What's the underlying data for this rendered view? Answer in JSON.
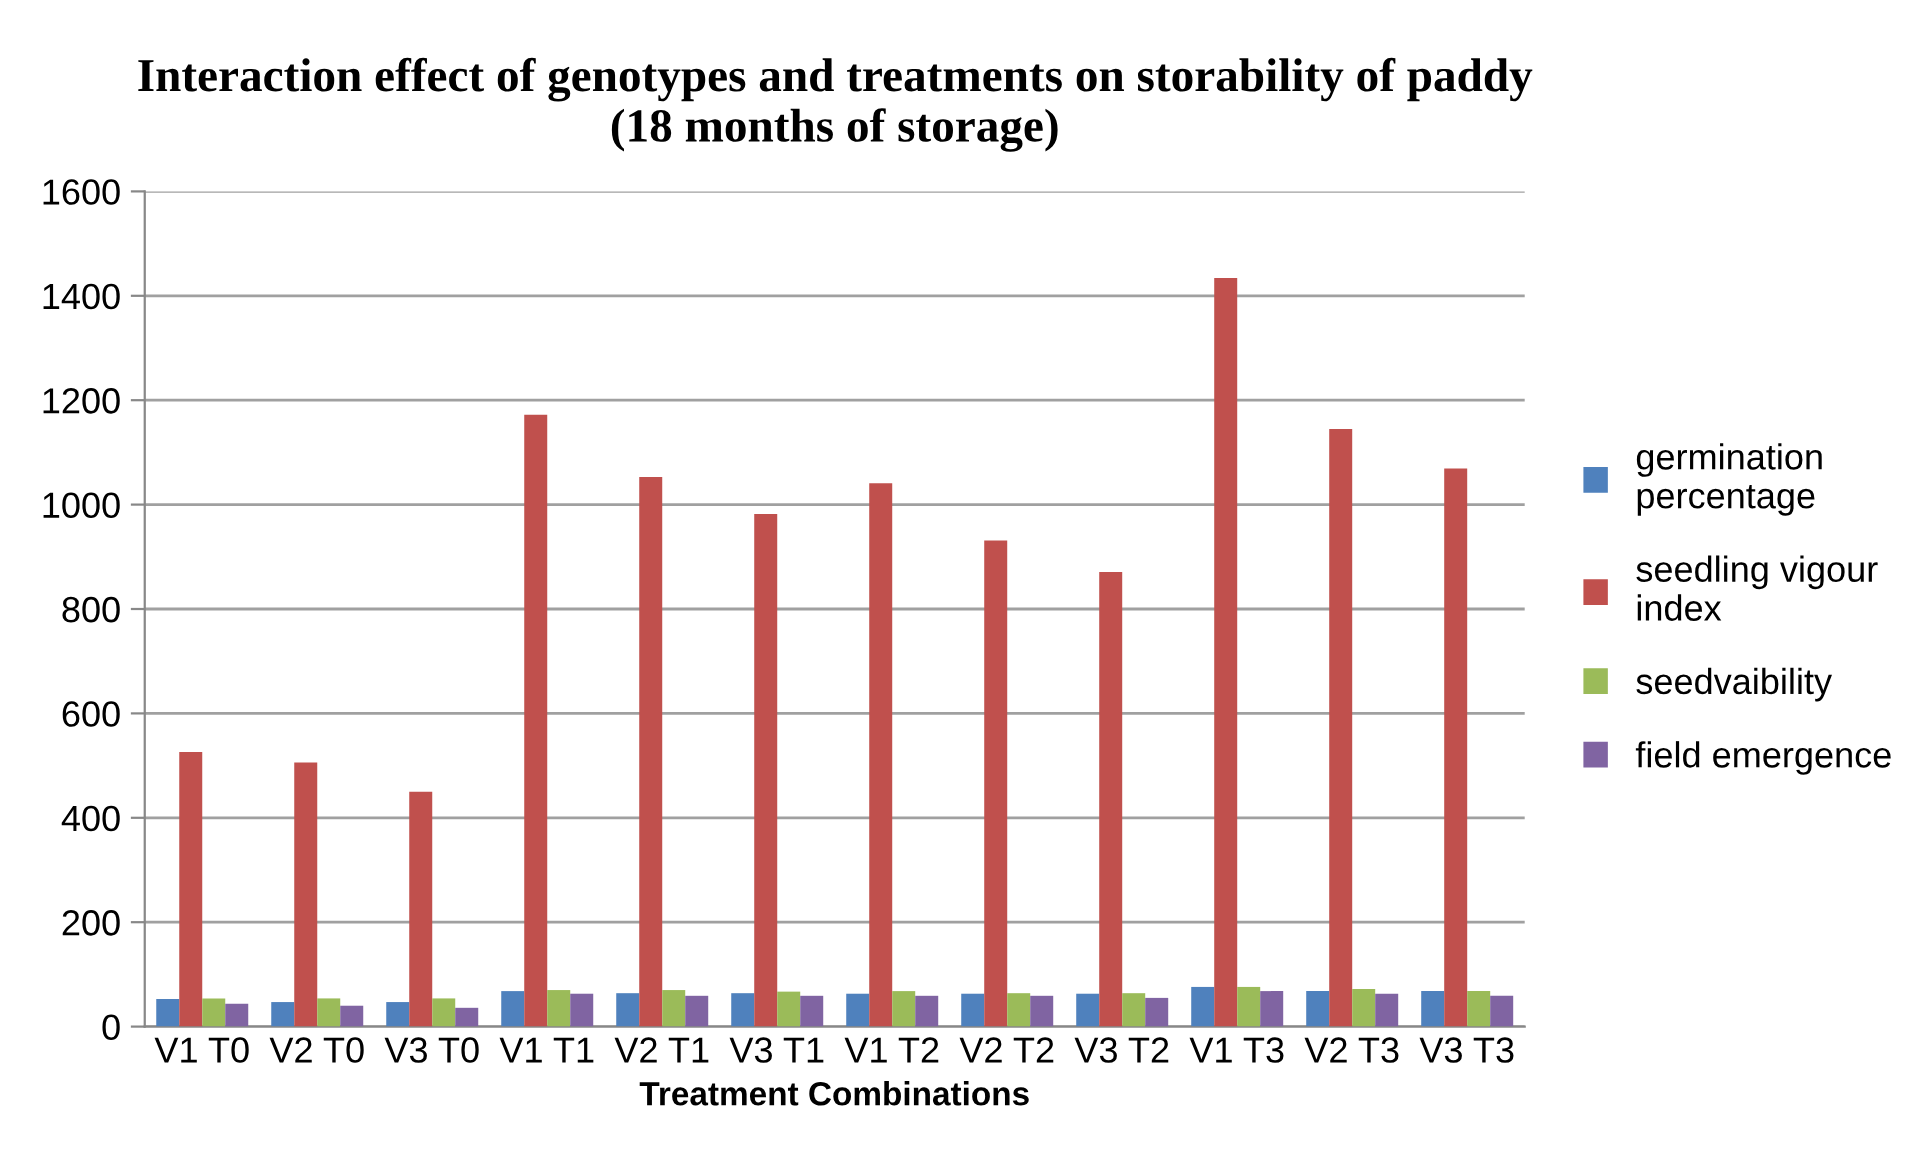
{
  "chart_data": {
    "type": "bar",
    "title": "Interaction effect of genotypes and treatments on storability of paddy\n(18 months of storage)",
    "xlabel": "Treatment Combinations",
    "categories": [
      "V1 T0",
      "V2 T0",
      "V3 T0",
      "V1 T1",
      "V2 T1",
      "V3 T1",
      "V1 T2",
      "V2 T2",
      "V3 T2",
      "V1 T3",
      "V2 T3",
      "V3 T3"
    ],
    "series": [
      {
        "name": "germination\npercentage",
        "color": "#4f81bd",
        "values": [
          53,
          47,
          47,
          68,
          64,
          64,
          63,
          63,
          63,
          76,
          68,
          68
        ]
      },
      {
        "name": "seedling vigour\nindex",
        "color": "#c0504d",
        "values": [
          526,
          506,
          450,
          1172,
          1053,
          982,
          1041,
          931,
          871,
          1434,
          1145,
          1069
        ]
      },
      {
        "name": "seedvaibility",
        "color": "#9bbb59",
        "values": [
          54,
          54,
          54,
          70,
          70,
          67,
          68,
          64,
          64,
          76,
          72,
          68
        ]
      },
      {
        "name": "field emergence",
        "color": "#8064a2",
        "values": [
          44,
          40,
          36,
          63,
          59,
          59,
          59,
          59,
          55,
          68,
          63,
          59
        ]
      }
    ],
    "ylim": [
      0,
      1600
    ],
    "yticks": [
      0,
      200,
      400,
      600,
      800,
      1000,
      1200,
      1400,
      1600
    ],
    "grid": "y",
    "legend": "right"
  }
}
